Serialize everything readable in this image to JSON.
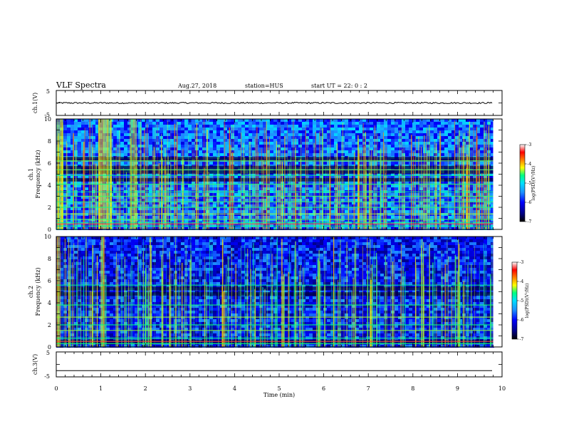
{
  "chart_data": {
    "type": "heatmap",
    "title": "VLF Spectra",
    "header": {
      "date": "Aug.27, 2018",
      "station": "station=HUS",
      "start": "start  UT =   22: 0  : 2"
    },
    "xlabel": "Time  (min)",
    "xlim": [
      0,
      10
    ],
    "xticks": [
      "0",
      "1",
      "2",
      "3",
      "4",
      "5",
      "6",
      "7",
      "8",
      "9",
      "10"
    ],
    "data_extent_min": 9.8,
    "panels": [
      {
        "id": "ch1-waveform",
        "type": "line",
        "ylabel": "ch.1(V)",
        "ylim": [
          -5,
          5
        ],
        "yticks": [
          "5",
          "-5"
        ],
        "baseline": 0,
        "noise_amplitude": 0.3
      },
      {
        "id": "ch1-spectrogram",
        "type": "heatmap",
        "ylabel_channel": "ch.1",
        "ylabel_quantity": "Frequency  (kHz)",
        "ylim": [
          0,
          10
        ],
        "yticks": [
          "0",
          "2",
          "4",
          "6",
          "8",
          "10"
        ],
        "background_level": -5.6,
        "hum_bands_khz": [
          0.3,
          0.6,
          0.9,
          1.4,
          2.0,
          2.5,
          3.0,
          3.4,
          4.1,
          4.9,
          5.4,
          6.2
        ],
        "dark_bands_khz": [
          4.5,
          5.2,
          5.6,
          6.4
        ],
        "bright_time_ranges_min": [
          [
            0.0,
            0.15
          ],
          [
            0.95,
            1.25
          ],
          [
            1.65,
            1.8
          ]
        ],
        "colorbar": {
          "label": "log(PSD)(V²/Hz)",
          "range": [
            -7,
            -3
          ],
          "ticks": [
            "-3",
            "-4",
            "-5",
            "-6",
            "-7"
          ]
        }
      },
      {
        "id": "ch2-spectrogram",
        "type": "heatmap",
        "ylabel_channel": "ch.2",
        "ylabel_quantity": "Frequency  (kHz)",
        "ylim": [
          0,
          10
        ],
        "yticks": [
          "0",
          "2",
          "4",
          "6",
          "8",
          "10"
        ],
        "background_level": -6.0,
        "hum_bands_khz": [
          0.3,
          0.8,
          1.5,
          2.0,
          2.7,
          3.8,
          5.6
        ],
        "dark_bands_khz": [
          0.5,
          4.8,
          5.3
        ],
        "bright_time_ranges_min": [
          [
            0.0,
            0.1
          ],
          [
            1.0,
            1.1
          ]
        ],
        "colorbar": {
          "label": "log(PSD)(V²/Hz)",
          "range": [
            -7,
            -3
          ],
          "ticks": [
            "-3",
            "-4",
            "-5",
            "-6",
            "-7"
          ]
        }
      },
      {
        "id": "ch3-waveform",
        "type": "line",
        "ylabel": "ch.3(V)",
        "ylim": [
          -5,
          5
        ],
        "yticks": [
          "5",
          "-5"
        ],
        "baseline": -2.5,
        "noise_amplitude": 0
      }
    ],
    "colormap": [
      "#000000",
      "#000080",
      "#0000ff",
      "#1e90ff",
      "#00e0ff",
      "#00ff80",
      "#ffff00",
      "#ff8000",
      "#ff0000",
      "#ffffff"
    ]
  }
}
